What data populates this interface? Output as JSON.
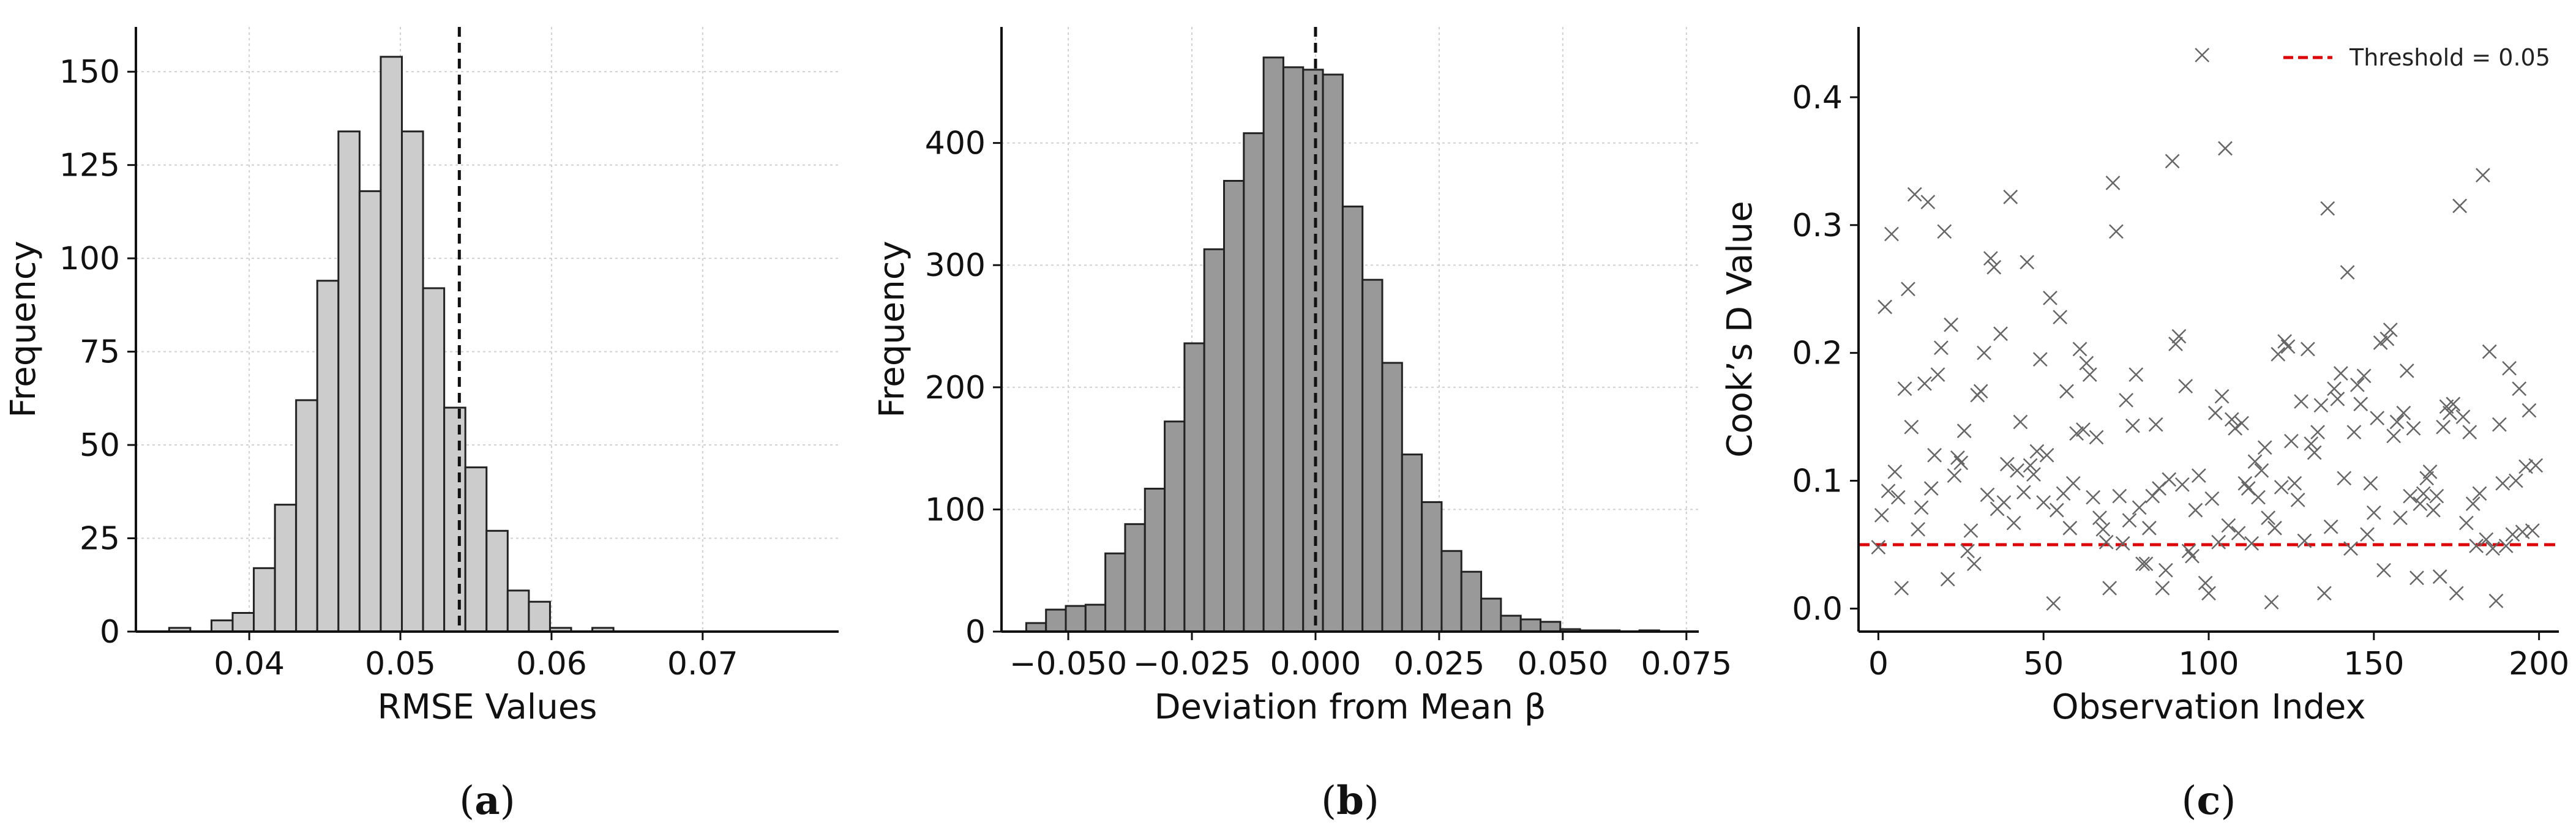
{
  "chart_data": [
    {
      "type": "bar",
      "panel_label": "a",
      "xlabel": "RMSE Values",
      "ylabel": "Frequency",
      "xlim": [
        0.0325,
        0.079
      ],
      "ylim": [
        0,
        162
      ],
      "xticks": [
        0.04,
        0.05,
        0.06,
        0.07
      ],
      "xtick_labels": [
        "0.04",
        "0.05",
        "0.06",
        "0.07"
      ],
      "yticks": [
        0,
        25,
        50,
        75,
        100,
        125,
        150
      ],
      "ytick_labels": [
        "0",
        "25",
        "50",
        "75",
        "100",
        "125",
        "150"
      ],
      "grid": true,
      "bar_color": "#cccccc",
      "edge_color": "#222222",
      "bins": [
        {
          "x0": 0.0347,
          "x1": 0.0361,
          "value": 1
        },
        {
          "x0": 0.0361,
          "x1": 0.0375,
          "value": 0
        },
        {
          "x0": 0.0375,
          "x1": 0.0389,
          "value": 3
        },
        {
          "x0": 0.0389,
          "x1": 0.0403,
          "value": 5
        },
        {
          "x0": 0.0403,
          "x1": 0.0417,
          "value": 17
        },
        {
          "x0": 0.0417,
          "x1": 0.0431,
          "value": 34
        },
        {
          "x0": 0.0431,
          "x1": 0.0445,
          "value": 62
        },
        {
          "x0": 0.0445,
          "x1": 0.0459,
          "value": 94
        },
        {
          "x0": 0.0459,
          "x1": 0.0473,
          "value": 134
        },
        {
          "x0": 0.0473,
          "x1": 0.0487,
          "value": 118
        },
        {
          "x0": 0.0487,
          "x1": 0.0501,
          "value": 154
        },
        {
          "x0": 0.0501,
          "x1": 0.0515,
          "value": 134
        },
        {
          "x0": 0.0515,
          "x1": 0.0529,
          "value": 92
        },
        {
          "x0": 0.0529,
          "x1": 0.0543,
          "value": 60
        },
        {
          "x0": 0.0543,
          "x1": 0.0557,
          "value": 44
        },
        {
          "x0": 0.0557,
          "x1": 0.0571,
          "value": 27
        },
        {
          "x0": 0.0571,
          "x1": 0.0585,
          "value": 11
        },
        {
          "x0": 0.0585,
          "x1": 0.0599,
          "value": 8
        },
        {
          "x0": 0.0599,
          "x1": 0.0613,
          "value": 1
        },
        {
          "x0": 0.0613,
          "x1": 0.0627,
          "value": 0
        },
        {
          "x0": 0.0627,
          "x1": 0.0641,
          "value": 1
        }
      ],
      "vline": {
        "x": 0.0539,
        "style": "dashed",
        "color": "#111111"
      }
    },
    {
      "type": "bar",
      "panel_label": "b",
      "xlabel": "Deviation from Mean β",
      "ylabel": "Frequency",
      "xlim": [
        -0.0635,
        0.0775
      ],
      "ylim": [
        0,
        495
      ],
      "xticks": [
        -0.05,
        -0.025,
        0.0,
        0.025,
        0.05,
        0.075
      ],
      "xtick_labels": [
        "−0.050",
        "−0.025",
        "0.000",
        "0.025",
        "0.050",
        "0.075"
      ],
      "yticks": [
        0,
        100,
        200,
        300,
        400
      ],
      "ytick_labels": [
        "0",
        "100",
        "200",
        "300",
        "400"
      ],
      "grid": true,
      "bar_color": "#999999",
      "edge_color": "#222222",
      "bins": [
        {
          "x0": -0.0585,
          "x1": -0.0545,
          "value": 7
        },
        {
          "x0": -0.0545,
          "x1": -0.0505,
          "value": 18
        },
        {
          "x0": -0.0505,
          "x1": -0.0465,
          "value": 21
        },
        {
          "x0": -0.0465,
          "x1": -0.0425,
          "value": 22
        },
        {
          "x0": -0.0425,
          "x1": -0.0385,
          "value": 64
        },
        {
          "x0": -0.0385,
          "x1": -0.0345,
          "value": 88
        },
        {
          "x0": -0.0345,
          "x1": -0.0305,
          "value": 117
        },
        {
          "x0": -0.0305,
          "x1": -0.0265,
          "value": 172
        },
        {
          "x0": -0.0265,
          "x1": -0.0225,
          "value": 236
        },
        {
          "x0": -0.0225,
          "x1": -0.0185,
          "value": 313
        },
        {
          "x0": -0.0185,
          "x1": -0.0145,
          "value": 369
        },
        {
          "x0": -0.0145,
          "x1": -0.0105,
          "value": 408
        },
        {
          "x0": -0.0105,
          "x1": -0.0065,
          "value": 470
        },
        {
          "x0": -0.0065,
          "x1": -0.0025,
          "value": 462
        },
        {
          "x0": -0.0025,
          "x1": 0.0015,
          "value": 460
        },
        {
          "x0": 0.0015,
          "x1": 0.0055,
          "value": 456
        },
        {
          "x0": 0.0055,
          "x1": 0.0095,
          "value": 348
        },
        {
          "x0": 0.0095,
          "x1": 0.0135,
          "value": 288
        },
        {
          "x0": 0.0135,
          "x1": 0.0175,
          "value": 220
        },
        {
          "x0": 0.0175,
          "x1": 0.0215,
          "value": 145
        },
        {
          "x0": 0.0215,
          "x1": 0.0255,
          "value": 106
        },
        {
          "x0": 0.0255,
          "x1": 0.0295,
          "value": 66
        },
        {
          "x0": 0.0295,
          "x1": 0.0335,
          "value": 49
        },
        {
          "x0": 0.0335,
          "x1": 0.0375,
          "value": 27
        },
        {
          "x0": 0.0375,
          "x1": 0.0415,
          "value": 13
        },
        {
          "x0": 0.0415,
          "x1": 0.0455,
          "value": 10
        },
        {
          "x0": 0.0455,
          "x1": 0.0495,
          "value": 8
        },
        {
          "x0": 0.0495,
          "x1": 0.0535,
          "value": 2
        },
        {
          "x0": 0.0535,
          "x1": 0.0575,
          "value": 1
        },
        {
          "x0": 0.0575,
          "x1": 0.0615,
          "value": 1
        },
        {
          "x0": 0.0615,
          "x1": 0.0655,
          "value": 0
        },
        {
          "x0": 0.0655,
          "x1": 0.0695,
          "value": 1
        }
      ],
      "vline": {
        "x": 0.0,
        "style": "dashed",
        "color": "#111111"
      }
    },
    {
      "type": "scatter",
      "panel_label": "c",
      "xlabel": "Observation Index",
      "ylabel": "Cook’s D Value",
      "xlim": [
        -6,
        206
      ],
      "ylim": [
        -0.018,
        0.455
      ],
      "xticks": [
        0,
        50,
        100,
        150,
        200
      ],
      "xtick_labels": [
        "0",
        "50",
        "100",
        "150",
        "200"
      ],
      "yticks": [
        0.0,
        0.1,
        0.2,
        0.3,
        0.4
      ],
      "ytick_labels": [
        "0.0",
        "0.1",
        "0.2",
        "0.3",
        "0.4"
      ],
      "grid": false,
      "marker": "x",
      "marker_color": "#666666",
      "legend_position": "top-right",
      "threshold": {
        "y": 0.05,
        "label": "Threshold = 0.05",
        "color": "#dd0000",
        "style": "dashed"
      },
      "points": [
        [
          0,
          0.048
        ],
        [
          1,
          0.073
        ],
        [
          2,
          0.236
        ],
        [
          3,
          0.092
        ],
        [
          4,
          0.293
        ],
        [
          5,
          0.107
        ],
        [
          6,
          0.087
        ],
        [
          7,
          0.016
        ],
        [
          8,
          0.172
        ],
        [
          9,
          0.25
        ],
        [
          10,
          0.142
        ],
        [
          11,
          0.324
        ],
        [
          12,
          0.062
        ],
        [
          13,
          0.079
        ],
        [
          14,
          0.176
        ],
        [
          15,
          0.318
        ],
        [
          16,
          0.094
        ],
        [
          17,
          0.12
        ],
        [
          18,
          0.183
        ],
        [
          19,
          0.204
        ],
        [
          20,
          0.295
        ],
        [
          21,
          0.023
        ],
        [
          22,
          0.222
        ],
        [
          23,
          0.104
        ],
        [
          24,
          0.118
        ],
        [
          25,
          0.114
        ],
        [
          26,
          0.139
        ],
        [
          27,
          0.045
        ],
        [
          28,
          0.061
        ],
        [
          29,
          0.035
        ],
        [
          30,
          0.167
        ],
        [
          31,
          0.17
        ],
        [
          32,
          0.2
        ],
        [
          33,
          0.089
        ],
        [
          34,
          0.274
        ],
        [
          35,
          0.267
        ],
        [
          36,
          0.078
        ],
        [
          37,
          0.215
        ],
        [
          38,
          0.083
        ],
        [
          39,
          0.113
        ],
        [
          40,
          0.322
        ],
        [
          41,
          0.067
        ],
        [
          42,
          0.108
        ],
        [
          43,
          0.146
        ],
        [
          44,
          0.091
        ],
        [
          45,
          0.271
        ],
        [
          46,
          0.112
        ],
        [
          47,
          0.105
        ],
        [
          48,
          0.123
        ],
        [
          49,
          0.195
        ],
        [
          50,
          0.083
        ],
        [
          51,
          0.12
        ],
        [
          52,
          0.243
        ],
        [
          53,
          0.004
        ],
        [
          54,
          0.077
        ],
        [
          55,
          0.228
        ],
        [
          56,
          0.09
        ],
        [
          57,
          0.17
        ],
        [
          58,
          0.063
        ],
        [
          59,
          0.098
        ],
        [
          60,
          0.137
        ],
        [
          61,
          0.203
        ],
        [
          62,
          0.14
        ],
        [
          63,
          0.192
        ],
        [
          64,
          0.183
        ],
        [
          65,
          0.087
        ],
        [
          66,
          0.134
        ],
        [
          67,
          0.071
        ],
        [
          68,
          0.062
        ],
        [
          69,
          0.052
        ],
        [
          70,
          0.016
        ],
        [
          71,
          0.333
        ],
        [
          72,
          0.295
        ],
        [
          73,
          0.088
        ],
        [
          74,
          0.051
        ],
        [
          75,
          0.163
        ],
        [
          76,
          0.069
        ],
        [
          77,
          0.143
        ],
        [
          78,
          0.183
        ],
        [
          79,
          0.079
        ],
        [
          80,
          0.035
        ],
        [
          81,
          0.035
        ],
        [
          82,
          0.063
        ],
        [
          83,
          0.088
        ],
        [
          84,
          0.144
        ],
        [
          85,
          0.094
        ],
        [
          86,
          0.016
        ],
        [
          87,
          0.03
        ],
        [
          88,
          0.101
        ],
        [
          89,
          0.35
        ],
        [
          90,
          0.207
        ],
        [
          91,
          0.213
        ],
        [
          92,
          0.097
        ],
        [
          93,
          0.174
        ],
        [
          94,
          0.045
        ],
        [
          95,
          0.041
        ],
        [
          96,
          0.077
        ],
        [
          97,
          0.104
        ],
        [
          98,
          0.433
        ],
        [
          99,
          0.02
        ],
        [
          100,
          0.012
        ],
        [
          101,
          0.086
        ],
        [
          102,
          0.153
        ],
        [
          103,
          0.052
        ],
        [
          104,
          0.166
        ],
        [
          105,
          0.36
        ],
        [
          106,
          0.065
        ],
        [
          107,
          0.148
        ],
        [
          108,
          0.141
        ],
        [
          109,
          0.059
        ],
        [
          110,
          0.145
        ],
        [
          111,
          0.098
        ],
        [
          112,
          0.094
        ],
        [
          113,
          0.051
        ],
        [
          114,
          0.115
        ],
        [
          115,
          0.087
        ],
        [
          116,
          0.108
        ],
        [
          117,
          0.126
        ],
        [
          118,
          0.071
        ],
        [
          119,
          0.005
        ],
        [
          120,
          0.063
        ],
        [
          121,
          0.199
        ],
        [
          122,
          0.095
        ],
        [
          123,
          0.209
        ],
        [
          124,
          0.205
        ],
        [
          125,
          0.131
        ],
        [
          126,
          0.098
        ],
        [
          127,
          0.085
        ],
        [
          128,
          0.162
        ],
        [
          129,
          0.053
        ],
        [
          130,
          0.203
        ],
        [
          131,
          0.129
        ],
        [
          132,
          0.122
        ],
        [
          133,
          0.138
        ],
        [
          134,
          0.159
        ],
        [
          135,
          0.012
        ],
        [
          136,
          0.313
        ],
        [
          137,
          0.064
        ],
        [
          138,
          0.172
        ],
        [
          139,
          0.164
        ],
        [
          140,
          0.184
        ],
        [
          141,
          0.102
        ],
        [
          142,
          0.263
        ],
        [
          143,
          0.047
        ],
        [
          144,
          0.138
        ],
        [
          145,
          0.175
        ],
        [
          146,
          0.16
        ],
        [
          147,
          0.182
        ],
        [
          148,
          0.058
        ],
        [
          149,
          0.098
        ],
        [
          150,
          0.075
        ],
        [
          151,
          0.149
        ],
        [
          152,
          0.208
        ],
        [
          153,
          0.03
        ],
        [
          154,
          0.211
        ],
        [
          155,
          0.218
        ],
        [
          156,
          0.135
        ],
        [
          157,
          0.146
        ],
        [
          158,
          0.071
        ],
        [
          159,
          0.153
        ],
        [
          160,
          0.186
        ],
        [
          161,
          0.088
        ],
        [
          162,
          0.141
        ],
        [
          163,
          0.024
        ],
        [
          164,
          0.082
        ],
        [
          165,
          0.09
        ],
        [
          166,
          0.102
        ],
        [
          167,
          0.107
        ],
        [
          168,
          0.077
        ],
        [
          169,
          0.088
        ],
        [
          170,
          0.025
        ],
        [
          171,
          0.142
        ],
        [
          172,
          0.158
        ],
        [
          173,
          0.153
        ],
        [
          174,
          0.16
        ],
        [
          175,
          0.012
        ],
        [
          176,
          0.315
        ],
        [
          177,
          0.15
        ],
        [
          178,
          0.067
        ],
        [
          179,
          0.138
        ],
        [
          180,
          0.082
        ],
        [
          181,
          0.049
        ],
        [
          182,
          0.09
        ],
        [
          183,
          0.339
        ],
        [
          184,
          0.054
        ],
        [
          185,
          0.201
        ],
        [
          186,
          0.047
        ],
        [
          187,
          0.006
        ],
        [
          188,
          0.144
        ],
        [
          189,
          0.098
        ],
        [
          190,
          0.049
        ],
        [
          191,
          0.188
        ],
        [
          192,
          0.058
        ],
        [
          193,
          0.1
        ],
        [
          194,
          0.172
        ],
        [
          195,
          0.06
        ],
        [
          196,
          0.111
        ],
        [
          197,
          0.155
        ],
        [
          198,
          0.061
        ],
        [
          199,
          0.112
        ]
      ]
    }
  ]
}
